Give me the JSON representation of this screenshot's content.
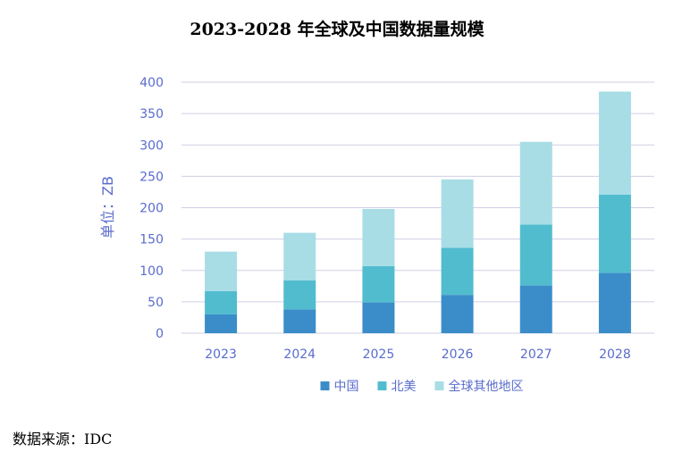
{
  "chart_data": {
    "type": "bar",
    "stacked": true,
    "title": "2023-2028 年全球及中国数据量规模",
    "ylabel": "单位：ZB",
    "xlabel": "",
    "categories": [
      "2023",
      "2024",
      "2025",
      "2026",
      "2027",
      "2028"
    ],
    "ylim": [
      0,
      400
    ],
    "yticks": [
      0,
      50,
      100,
      150,
      200,
      250,
      300,
      350,
      400
    ],
    "grid": true,
    "legend_position": "bottom",
    "series": [
      {
        "name": "中国",
        "color": "#3a8dc8",
        "values": [
          30,
          38,
          49,
          61,
          76,
          96
        ]
      },
      {
        "name": "北美",
        "color": "#52bccf",
        "values": [
          37,
          46,
          58,
          75,
          97,
          125
        ]
      },
      {
        "name": "全球其他地区",
        "color": "#a8dde6",
        "values": [
          63,
          76,
          91,
          109,
          132,
          164
        ]
      }
    ]
  },
  "source": "数据来源：IDC",
  "colors": {
    "axis_text": "#5a6ccc",
    "grid": "#cfcfe6"
  }
}
